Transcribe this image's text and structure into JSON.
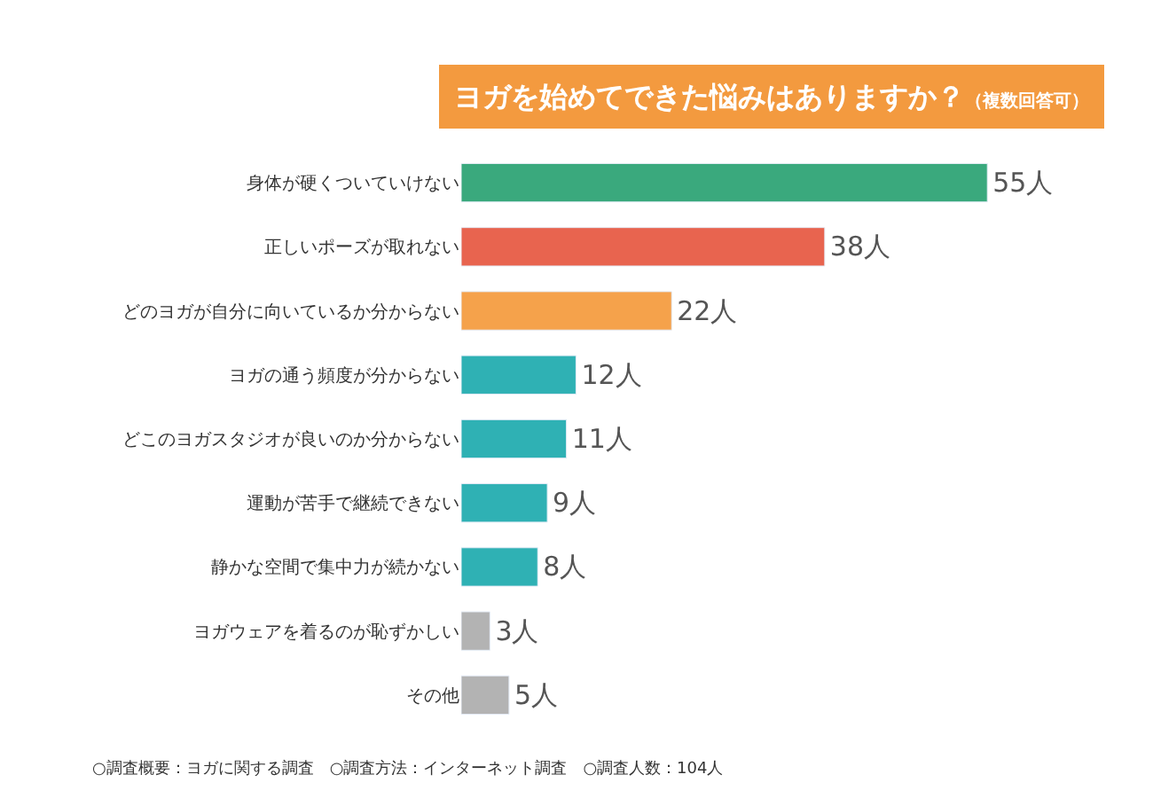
{
  "chart_data": {
    "type": "bar",
    "orientation": "horizontal",
    "title": "ヨガを始めてできた悩みはありますか？",
    "subtitle": "（複数回答可）",
    "categories": [
      "身体が硬くついていけない",
      "正しいポーズが取れない",
      "どのヨガが自分に向いているか分からない",
      "ヨガの通う頻度が分からない",
      "どこのヨガスタジオが良いのか分からない",
      "運動が苦手で継続できない",
      "静かな空間で集中力が続かない",
      "ヨガウェアを着るのが恥ずかしい",
      "その他"
    ],
    "values": [
      55,
      38,
      22,
      12,
      11,
      9,
      8,
      3,
      5
    ],
    "colors": [
      "#3aa97d",
      "#e8644f",
      "#f5a24b",
      "#2fb1b4",
      "#2fb1b4",
      "#2fb1b4",
      "#2fb1b4",
      "#b3b3b3",
      "#b3b3b3"
    ],
    "value_labels": [
      "55人",
      "38人",
      "22人",
      "12人",
      "11人",
      "9人",
      "8人",
      "3人",
      "5人"
    ],
    "annotations": [
      "○調査概要：ヨガに関する調査　○調査方法：インターネット調査　○調査人数：104人"
    ]
  }
}
